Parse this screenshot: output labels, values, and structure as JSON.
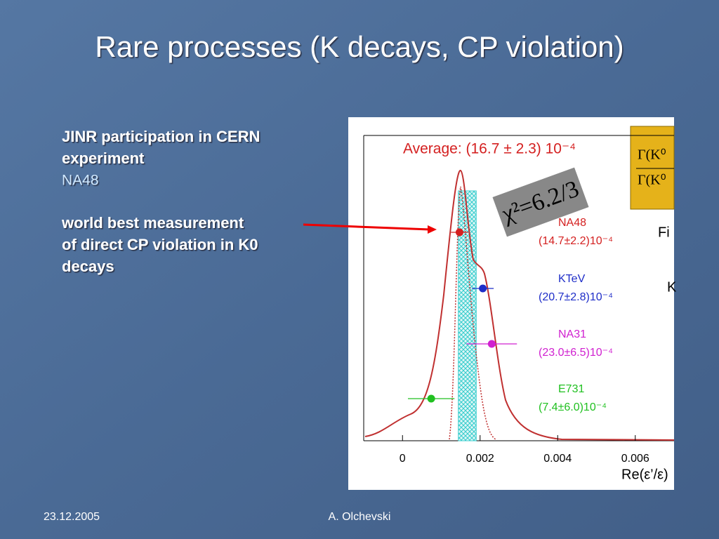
{
  "slide": {
    "title": "Rare processes (K decays, CP violation)",
    "text_lines": [
      "JINR participation in CERN",
      "experiment"
    ],
    "highlight": "NA48",
    "body_lines": [
      "world best measurement",
      "of direct CP violation in K0",
      "decays"
    ],
    "footer_date": "23.12.2005",
    "footer_author": "A. Olchevski"
  },
  "chart_data": {
    "type": "scatter",
    "title": "Average: (16.7 ± 2.3) 10⁻⁴",
    "average": 0.00167,
    "average_error": 0.00023,
    "annotation": "χ²=6.2/3",
    "x_label": "Re(ε’/ε)",
    "categories": [
      "NA48",
      "KTeV",
      "NA31",
      "E731"
    ],
    "values": [
      0.00147,
      0.00207,
      0.0023,
      0.00074
    ],
    "errors": [
      0.00022,
      0.00028,
      0.00065,
      0.0006
    ],
    "value_labels": [
      "(14.7±2.2)10⁻⁴",
      "(20.7±2.8)10⁻⁴",
      "(23.0±6.5)10⁻⁴",
      "(7.4±6.0)10⁻⁴"
    ],
    "colors": [
      "#d42020",
      "#1e2dc8",
      "#d020d0",
      "#20c020"
    ],
    "xlim": [
      -0.001,
      0.007
    ],
    "xticks": [
      0,
      0.002,
      0.004,
      0.006
    ],
    "formula_top": "Γ(K⁰",
    "formula_bottom": "Γ(K⁰",
    "cutoff_texts": [
      "Fi",
      "K"
    ]
  }
}
